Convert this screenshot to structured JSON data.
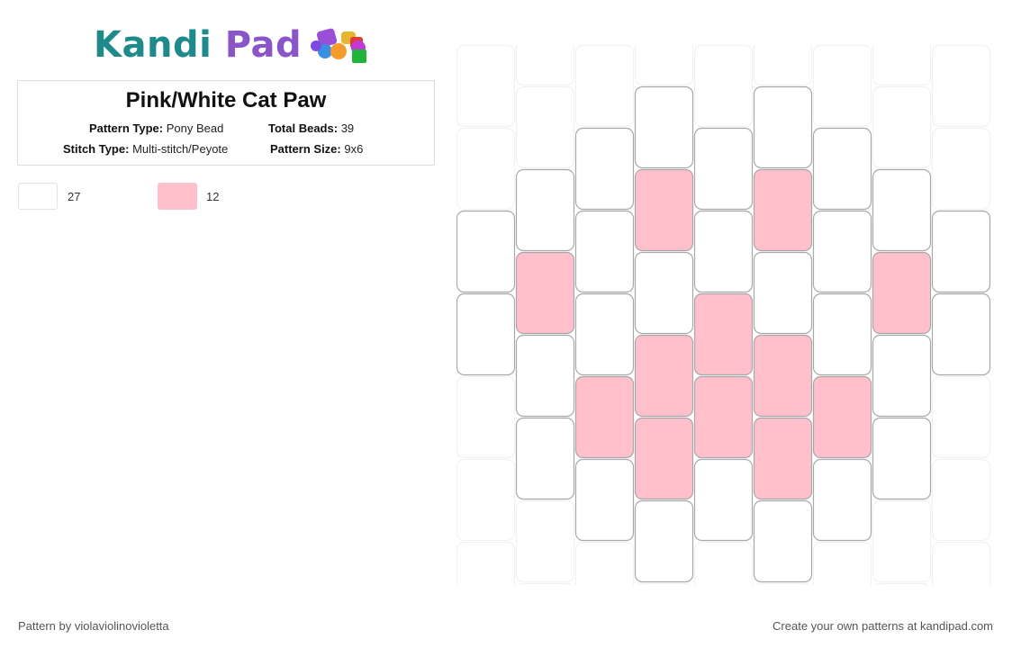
{
  "logo": {
    "part1": "Kandi",
    "part2": "Pad"
  },
  "pattern": {
    "title": "Pink/White Cat Paw",
    "pattern_type_label": "Pattern Type:",
    "pattern_type": "Pony Bead",
    "total_beads_label": "Total Beads:",
    "total_beads": "39",
    "stitch_type_label": "Stitch Type:",
    "stitch_type": "Multi-stitch/Peyote",
    "pattern_size_label": "Pattern Size:",
    "pattern_size": "9x6"
  },
  "legend": [
    {
      "color": "#ffffff",
      "count": "27"
    },
    {
      "color": "#ffc0cb",
      "count": "12"
    }
  ],
  "colors": {
    "white_bead": "#ffffff",
    "pink_bead": "#ffc0cb",
    "bead_border": "#a8a8a8",
    "ghost_border": "#f1f1f1"
  },
  "bead_columns": [
    [
      "ghost",
      "ghost",
      "white",
      "white",
      "ghost",
      "ghost"
    ],
    [
      "ghost",
      "white",
      "pink",
      "white",
      "white",
      "ghost"
    ],
    [
      "ghost",
      "white",
      "white",
      "white",
      "pink",
      "white"
    ],
    [
      "white",
      "pink",
      "white",
      "pink",
      "pink",
      "white"
    ],
    [
      "ghost",
      "white",
      "white",
      "pink",
      "pink",
      "white"
    ],
    [
      "white",
      "pink",
      "white",
      "pink",
      "pink",
      "white"
    ],
    [
      "ghost",
      "white",
      "white",
      "white",
      "pink",
      "white"
    ],
    [
      "ghost",
      "white",
      "pink",
      "white",
      "white",
      "ghost"
    ],
    [
      "ghost",
      "ghost",
      "white",
      "white",
      "ghost",
      "ghost"
    ]
  ],
  "footer": {
    "left": "Pattern by violaviolinovioletta",
    "right": "Create your own patterns at kandipad.com"
  }
}
